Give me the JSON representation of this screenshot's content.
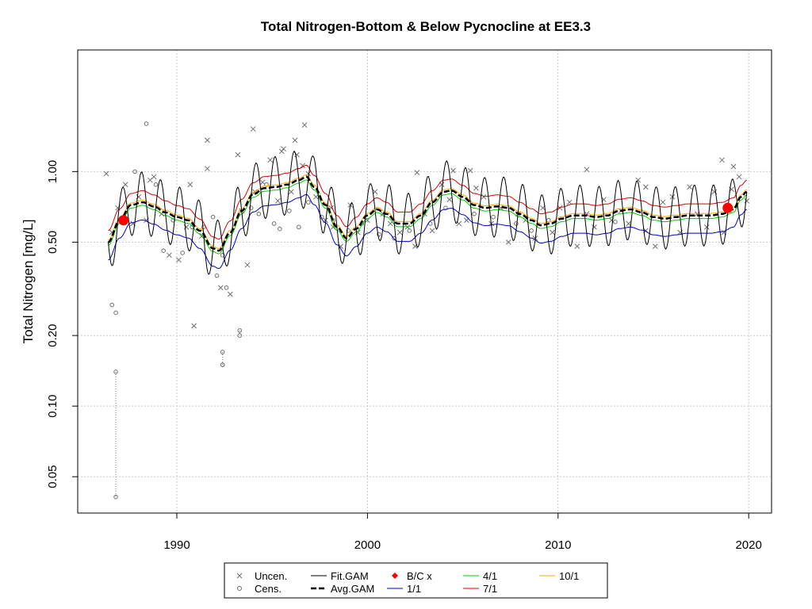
{
  "chart_data": {
    "type": "scatter",
    "title": "Total Nitrogen-Bottom & Below Pycnocline at EE3.3",
    "xlabel": "",
    "ylabel": "Total Nitrogen [mg/L]",
    "x_scale": "linear",
    "y_scale": "log",
    "xlim": [
      1984.8,
      2021.2
    ],
    "ylim": [
      0.035,
      3.3
    ],
    "x_ticks": [
      1990,
      2000,
      2010,
      2020
    ],
    "x_tick_labels": [
      "1990",
      "2000",
      "2010",
      "2020"
    ],
    "y_ticks": [
      0.05,
      0.1,
      0.2,
      0.5,
      1.0
    ],
    "y_tick_labels": [
      "0.05",
      "0.10",
      "0.20",
      "0.50",
      "1.00"
    ],
    "grid": true,
    "legend_position": "bottom-center",
    "colors": {
      "points": "#707070",
      "fit_gam": "#000000",
      "avg_gam": "#000000",
      "bc_x": "#ff0000",
      "q1_1": "#0000cc",
      "q4_1": "#00cc00",
      "q7_1": "#dd0000",
      "q10_1": "#ffa500",
      "grid": "#c8c8c8"
    },
    "legend": {
      "uncen": "Uncen.",
      "cens": "Cens.",
      "fit_gam": "Fit.GAM",
      "avg_gam": "Avg.GAM",
      "bc_x": "B/C x",
      "q1_1": "1/1",
      "q4_1": "4/1",
      "q7_1": "7/1",
      "q10_1": "10/1"
    },
    "series": [
      {
        "name": "Avg.GAM",
        "x": [
          1986.4,
          1987.0,
          1987.6,
          1988.2,
          1988.8,
          1989.4,
          1990.0,
          1990.6,
          1991.2,
          1991.9,
          1992.2,
          1992.8,
          1993.4,
          1994.0,
          1994.6,
          1995.2,
          1995.8,
          1996.4,
          1996.8,
          1997.2,
          1997.8,
          1998.4,
          1998.9,
          1999.4,
          2000.0,
          2000.5,
          2001.0,
          2001.6,
          2002.2,
          2002.8,
          2003.4,
          2004.0,
          2004.4,
          2005.0,
          2005.6,
          2006.2,
          2006.8,
          2007.4,
          2008.0,
          2008.6,
          2009.1,
          2009.6,
          2010.2,
          2010.8,
          2011.4,
          2012.0,
          2012.6,
          2013.2,
          2013.8,
          2014.4,
          2015.0,
          2015.6,
          2016.2,
          2016.8,
          2017.4,
          2018.0,
          2018.6,
          2019.2,
          2019.6,
          2019.9
        ],
        "y": [
          0.5,
          0.62,
          0.72,
          0.74,
          0.71,
          0.67,
          0.64,
          0.62,
          0.56,
          0.47,
          0.46,
          0.55,
          0.68,
          0.8,
          0.85,
          0.86,
          0.88,
          0.92,
          0.95,
          0.86,
          0.72,
          0.58,
          0.52,
          0.57,
          0.65,
          0.69,
          0.66,
          0.6,
          0.6,
          0.65,
          0.74,
          0.82,
          0.83,
          0.78,
          0.72,
          0.7,
          0.71,
          0.7,
          0.66,
          0.62,
          0.59,
          0.6,
          0.63,
          0.65,
          0.65,
          0.64,
          0.65,
          0.68,
          0.69,
          0.67,
          0.64,
          0.63,
          0.64,
          0.65,
          0.65,
          0.65,
          0.66,
          0.69,
          0.78,
          0.82
        ]
      }
    ],
    "quantile_factors": {
      "q1_1": 0.84,
      "q4_1": 0.97,
      "q7_1": 1.12,
      "q10_1": 1.02
    },
    "seasonal_amplitude_log10": 0.13,
    "bc_points": {
      "x": [
        1987.2,
        2018.9
      ],
      "y": [
        0.62,
        0.7
      ]
    },
    "uncensored": {
      "x": [
        1986.3,
        1986.6,
        1986.9,
        1987.3,
        1987.7,
        1988.0,
        1988.4,
        1988.8,
        1989.2,
        1989.6,
        1990.1,
        1990.5,
        1990.9,
        1991.3,
        1991.6,
        1992.3,
        1992.8,
        1993.4,
        1993.7,
        1994.1,
        1994.5,
        1994.9,
        1995.3,
        1995.6,
        1996.0,
        1996.3,
        1996.6,
        1996.9,
        1997.3,
        1997.8,
        1998.2,
        1998.6,
        1999.1,
        1999.5,
        2000.0,
        2000.4,
        2000.8,
        2001.2,
        2001.7,
        2002.1,
        2002.5,
        2003.0,
        2003.4,
        2003.9,
        2004.3,
        2004.8,
        2005.2,
        2005.7,
        2006.1,
        2006.5,
        2007.0,
        2007.4,
        2007.9,
        2008.3,
        2008.8,
        2009.2,
        2009.7,
        2010.1,
        2010.6,
        2011.0,
        2011.5,
        2011.9,
        2012.4,
        2012.8,
        2013.3,
        2013.7,
        2014.2,
        2014.6,
        2015.1,
        2015.5,
        2016.0,
        2016.4,
        2016.9,
        2017.3,
        2017.8,
        2018.2,
        2018.7,
        2019.1,
        2019.5,
        2019.9,
        1988.6,
        1990.7,
        1991.6,
        1993.2,
        1994.0,
        1995.5,
        1996.2,
        1996.7,
        1998.1,
        2002.6,
        2004.5,
        2005.4,
        2011.5,
        2014.6,
        2018.6,
        2019.2
      ],
      "y": [
        0.98,
        0.55,
        0.7,
        0.88,
        0.6,
        0.78,
        0.62,
        0.95,
        0.66,
        0.44,
        0.42,
        0.58,
        0.22,
        0.53,
        1.36,
        0.32,
        0.3,
        0.68,
        0.4,
        0.82,
        0.9,
        1.12,
        0.75,
        1.25,
        0.82,
        1.18,
        1.06,
        0.98,
        0.78,
        0.62,
        0.58,
        0.48,
        0.72,
        0.55,
        0.62,
        0.82,
        0.66,
        0.6,
        0.55,
        0.58,
        0.48,
        0.66,
        0.56,
        0.88,
        0.76,
        0.6,
        0.62,
        0.85,
        0.78,
        0.6,
        0.7,
        0.5,
        0.66,
        0.62,
        0.52,
        0.7,
        0.55,
        0.7,
        0.74,
        0.48,
        0.66,
        0.58,
        0.76,
        0.62,
        0.68,
        0.6,
        0.92,
        0.56,
        0.48,
        0.74,
        0.78,
        0.55,
        0.86,
        0.66,
        0.58,
        0.82,
        0.55,
        0.84,
        0.95,
        0.75,
        0.92,
        0.88,
        1.03,
        1.18,
        1.52,
        1.22,
        1.36,
        1.58,
        0.7,
        0.99,
        1.01,
        1.01,
        1.02,
        0.86,
        1.12,
        1.05
      ]
    },
    "censored": {
      "x": [
        1986.6,
        1986.8,
        1987.8,
        1988.4,
        1988.9,
        1989.3,
        1989.8,
        1990.3,
        1990.8,
        1991.4,
        1991.9,
        1992.1,
        1992.4,
        1992.6,
        1993.3,
        1993.9,
        1994.3,
        1994.7,
        1995.1,
        1995.4,
        1995.9,
        1996.4,
        1996.9,
        1997.6,
        1998.2,
        1999.0,
        1999.7,
        2000.6,
        2001.4,
        2002.2,
        2003.3,
        2004.1,
        2005.6,
        2006.6,
        2007.8,
        2008.6,
        2009.5,
        2013.0,
        1986.8,
        1992.4,
        1992.4
      ],
      "y": [
        0.27,
        0.25,
        1.0,
        1.6,
        0.88,
        0.46,
        0.62,
        0.45,
        0.58,
        0.58,
        0.64,
        0.36,
        0.44,
        0.32,
        0.21,
        0.7,
        0.66,
        0.88,
        0.6,
        0.57,
        0.68,
        0.58,
        0.74,
        0.64,
        0.62,
        0.56,
        0.6,
        0.54,
        0.52,
        0.56,
        0.6,
        0.7,
        0.66,
        0.64,
        0.6,
        0.56,
        0.62,
        0.61,
        0.14,
        0.17,
        0.15
      ],
      "drop_to": [
        0.27,
        0.25,
        1.0,
        1.6,
        0.88,
        0.46,
        0.62,
        0.45,
        0.58,
        0.58,
        0.64,
        0.36,
        0.44,
        0.32,
        0.2,
        0.7,
        0.66,
        0.88,
        0.6,
        0.57,
        0.68,
        0.58,
        0.74,
        0.64,
        0.62,
        0.56,
        0.6,
        0.54,
        0.52,
        0.56,
        0.6,
        0.7,
        0.66,
        0.64,
        0.6,
        0.56,
        0.62,
        0.61,
        0.041,
        0.15,
        0.15
      ]
    }
  }
}
